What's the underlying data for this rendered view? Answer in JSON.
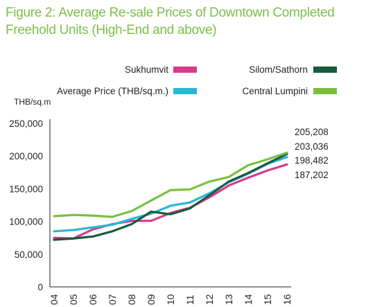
{
  "chart_data": {
    "type": "line",
    "title_line1": "Figure 2: Average Re-sale Prices of Downtown Completed",
    "title_line2": "Freehold Units (High-End and above)",
    "ylabel": "THB/sq.m",
    "xlabel": "",
    "x": [
      "04",
      "05",
      "06",
      "07",
      "08",
      "09",
      "10",
      "11",
      "12",
      "13",
      "14",
      "15",
      "16"
    ],
    "ylim": [
      0,
      250000
    ],
    "yticks": [
      "0",
      "50,000",
      "100,000",
      "150,000",
      "200,000",
      "250,000"
    ],
    "ytick_values": [
      0,
      50000,
      100000,
      150000,
      200000,
      250000
    ],
    "grid": "none",
    "legend_position": "top",
    "series": [
      {
        "name": "Sukhumvit",
        "color": "#d63a8c",
        "values": [
          75000,
          74000,
          88000,
          96000,
          101000,
          101000,
          113000,
          121000,
          137000,
          155000,
          167000,
          178000,
          187202
        ]
      },
      {
        "name": "Average Price (THB/sq.m.)",
        "color": "#29b8d2",
        "values": [
          85000,
          87000,
          91000,
          95000,
          104000,
          112000,
          124000,
          129000,
          143000,
          160000,
          173000,
          188000,
          198482
        ]
      },
      {
        "name": "Silom/Sathorn",
        "color": "#1a5a40",
        "values": [
          72000,
          74000,
          77000,
          85000,
          96000,
          115000,
          111000,
          120000,
          140000,
          161000,
          174000,
          189000,
          203036
        ]
      },
      {
        "name": "Central Lumpini",
        "color": "#7bbf3f",
        "values": [
          108000,
          110000,
          109000,
          107000,
          116000,
          132000,
          148000,
          149000,
          161000,
          168000,
          186000,
          195000,
          205208
        ]
      }
    ],
    "end_labels": [
      "205,208",
      "203,036",
      "198,482",
      "187,202"
    ]
  }
}
